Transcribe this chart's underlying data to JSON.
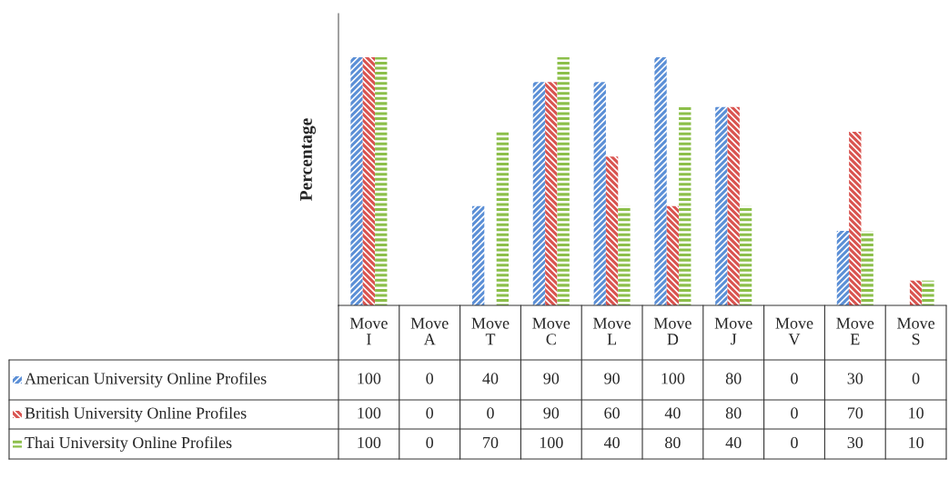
{
  "chart_data": {
    "type": "bar",
    "ylabel": "Percentage",
    "categories": [
      "Move\nI",
      "Move\nA",
      "Move\nT",
      "Move\nC",
      "Move\nL",
      "Move\nD",
      "Move\nJ",
      "Move\nV",
      "Move\nE",
      "Move\nS"
    ],
    "series": [
      {
        "name": "American University Online Profiles",
        "color": "#5b8fd6",
        "values": [
          100,
          0,
          40,
          90,
          90,
          100,
          80,
          0,
          30,
          0
        ]
      },
      {
        "name": "British University Online Profiles",
        "color": "#d9534f",
        "values": [
          100,
          0,
          0,
          90,
          60,
          40,
          80,
          0,
          70,
          10
        ]
      },
      {
        "name": "Thai University Online Profiles",
        "color": "#8cbf4a",
        "values": [
          100,
          0,
          70,
          100,
          40,
          80,
          40,
          0,
          30,
          10
        ]
      }
    ],
    "data_labels": true,
    "legend": "bottom left"
  }
}
